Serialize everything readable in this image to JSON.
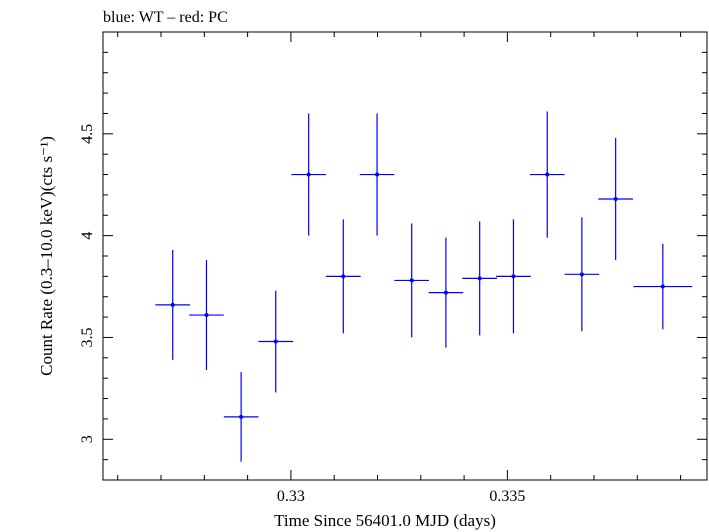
{
  "header": {
    "title": "blue: WT – red: PC"
  },
  "chart_data": {
    "type": "scatter",
    "title": "blue: WT – red: PC",
    "xlabel": "Time Since 56401.0 MJD (days)",
    "ylabel": "Count Rate (0.3–10.0 keV)(cts s⁻¹)",
    "xlim": [
      0.32566,
      0.33961
    ],
    "ylim": [
      2.8,
      5.0
    ],
    "x_ticks": [
      0.33,
      0.335
    ],
    "x_tick_labels": [
      "0.33",
      "0.335"
    ],
    "x_minor_step": 0.001,
    "y_ticks": [
      3,
      3.5,
      4,
      4.5
    ],
    "y_tick_labels": [
      "3",
      "3.5",
      "4",
      "4.5"
    ],
    "y_minor_step": 0.1,
    "grid": false,
    "series": [
      {
        "name": "WT",
        "color": "#0000ff",
        "points": [
          {
            "x": 0.32727,
            "xerr": 0.0004,
            "y": 3.66,
            "yerr": 0.27
          },
          {
            "x": 0.32805,
            "xerr": 0.0004,
            "y": 3.61,
            "yerr": 0.27
          },
          {
            "x": 0.32885,
            "xerr": 0.0004,
            "y": 3.11,
            "yerr": 0.22
          },
          {
            "x": 0.32965,
            "xerr": 0.0004,
            "y": 3.48,
            "yerr": 0.25
          },
          {
            "x": 0.33041,
            "xerr": 0.0004,
            "y": 4.3,
            "yerr": 0.3
          },
          {
            "x": 0.33121,
            "xerr": 0.0004,
            "y": 3.8,
            "yerr": 0.28
          },
          {
            "x": 0.33199,
            "xerr": 0.0004,
            "y": 4.3,
            "yerr": 0.3
          },
          {
            "x": 0.33279,
            "xerr": 0.0004,
            "y": 3.78,
            "yerr": 0.28
          },
          {
            "x": 0.33358,
            "xerr": 0.0004,
            "y": 3.72,
            "yerr": 0.27
          },
          {
            "x": 0.33436,
            "xerr": 0.0004,
            "y": 3.79,
            "yerr": 0.28
          },
          {
            "x": 0.33514,
            "xerr": 0.0004,
            "y": 3.8,
            "yerr": 0.28
          },
          {
            "x": 0.33592,
            "xerr": 0.0004,
            "y": 4.3,
            "yerr": 0.31
          },
          {
            "x": 0.33672,
            "xerr": 0.0004,
            "y": 3.81,
            "yerr": 0.28
          },
          {
            "x": 0.3375,
            "xerr": 0.0004,
            "y": 4.18,
            "yerr": 0.3
          },
          {
            "x": 0.33859,
            "xerr": 0.00068,
            "y": 3.75,
            "yerr": 0.21
          }
        ]
      }
    ]
  }
}
